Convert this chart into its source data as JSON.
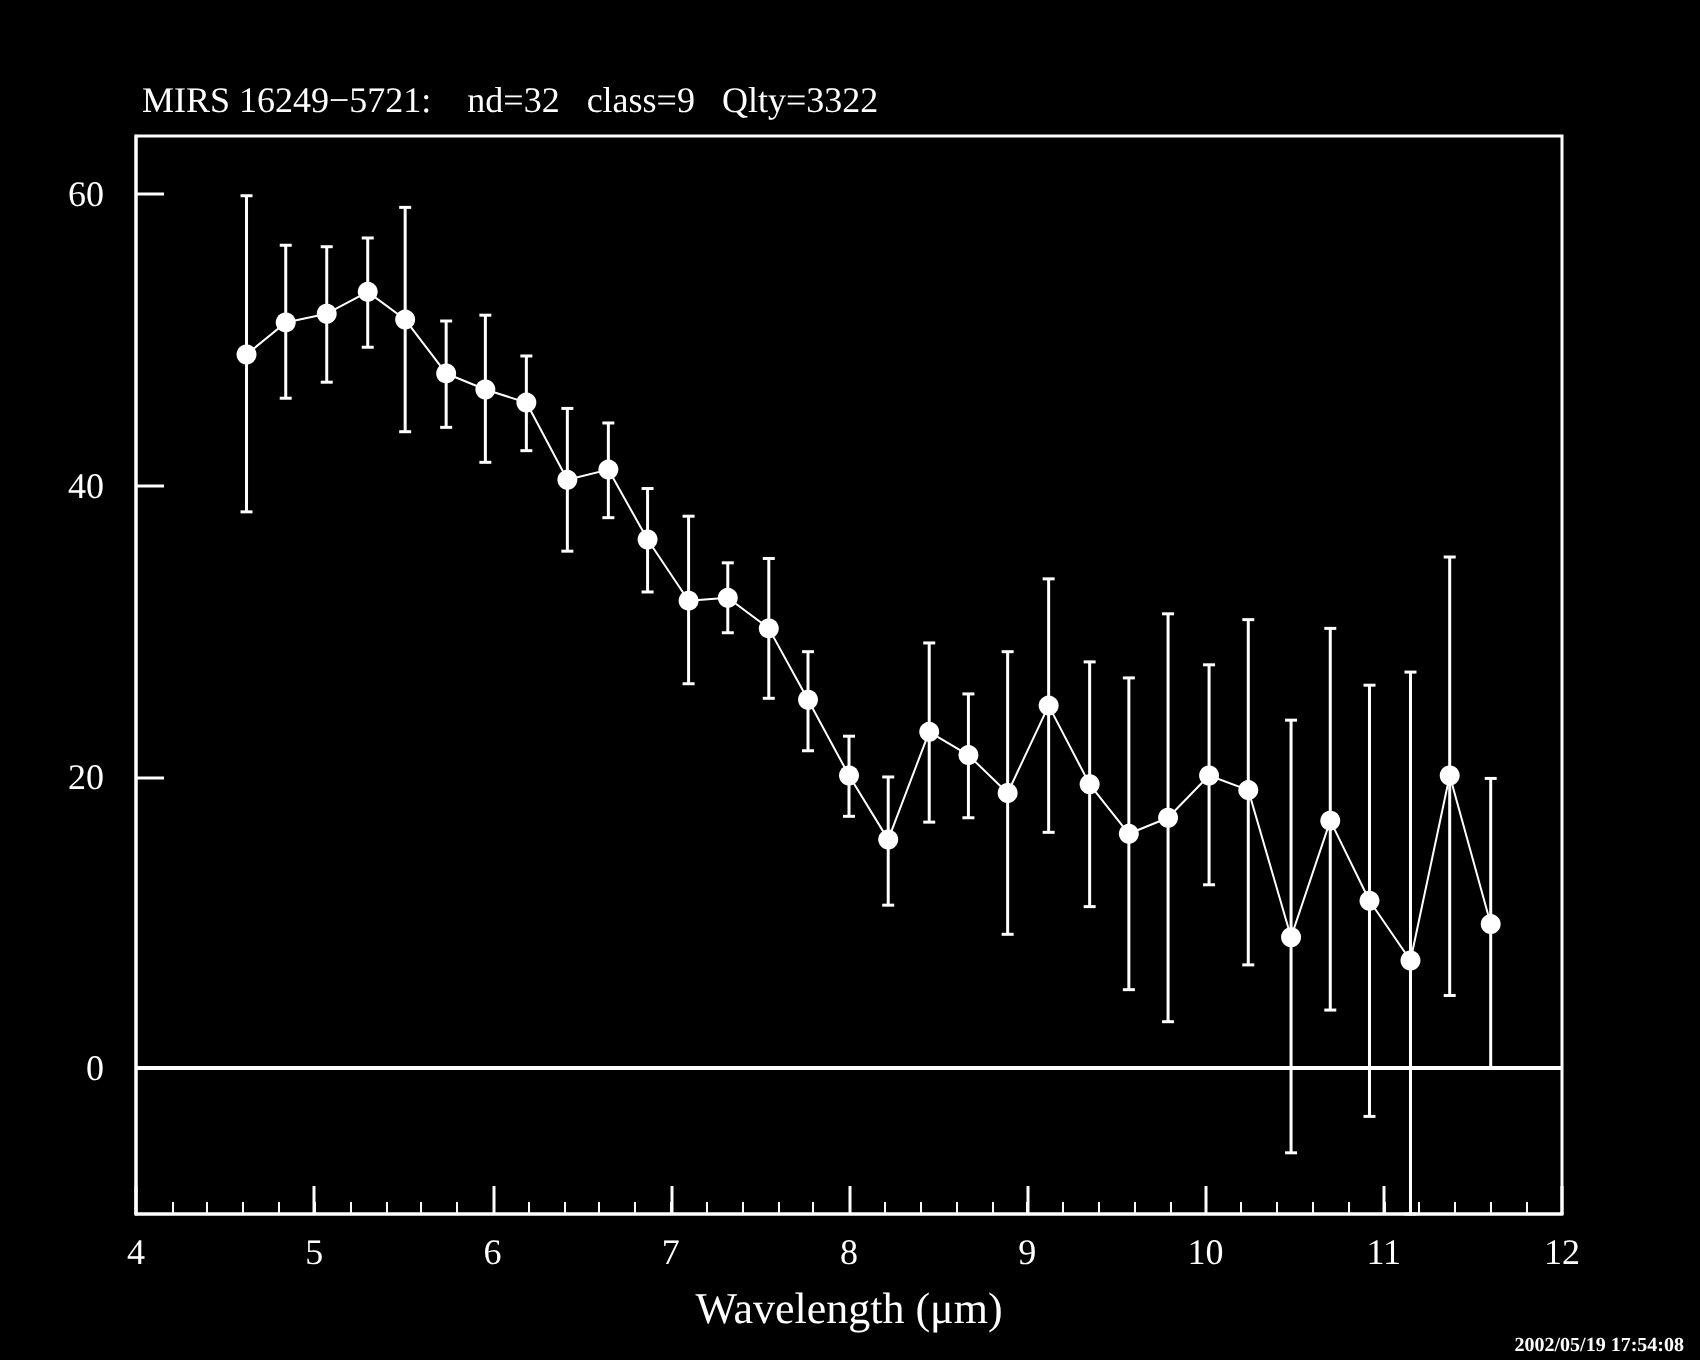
{
  "chart_data": {
    "type": "line",
    "title": "MIRS 16249−5721:    nd=32   class=9   Qlty=3322",
    "xlabel": "Wavelength (μm)",
    "annotations": [
      "2002/05/19 17:54:08"
    ],
    "xlim": [
      4,
      12
    ],
    "xticks": [
      4,
      5,
      6,
      7,
      8,
      9,
      10,
      11,
      12
    ],
    "ylim": [
      -10,
      64
    ],
    "yticks": [
      0,
      20,
      40,
      60
    ],
    "marker": "circle",
    "line_style": "solid",
    "ref_lines": [
      {
        "axis": "y",
        "value": 0,
        "color": "#ffffff"
      }
    ],
    "series": [
      {
        "color": "#ffffff",
        "x": [
          4.62,
          4.84,
          5.07,
          5.3,
          5.51,
          5.74,
          5.96,
          6.19,
          6.42,
          6.65,
          6.87,
          7.1,
          7.32,
          7.55,
          7.77,
          8.0,
          8.22,
          8.45,
          8.67,
          8.89,
          9.12,
          9.35,
          9.57,
          9.79,
          10.02,
          10.24,
          10.48,
          10.7,
          10.92,
          11.15,
          11.37,
          11.6
        ],
        "values": [
          49.0,
          51.2,
          51.8,
          53.3,
          51.4,
          47.7,
          46.6,
          45.7,
          40.4,
          41.1,
          36.3,
          32.1,
          32.3,
          30.2,
          25.3,
          20.1,
          15.7,
          23.1,
          21.5,
          18.9,
          24.9,
          19.5,
          16.1,
          17.2,
          20.1,
          19.1,
          9.0,
          17.0,
          11.5,
          7.4,
          20.1,
          9.9
        ],
        "errors": [
          [
            38.2,
            59.9
          ],
          [
            46.0,
            56.5
          ],
          [
            47.1,
            56.4
          ],
          [
            49.5,
            57.0
          ],
          [
            43.7,
            59.1
          ],
          [
            44.0,
            51.3
          ],
          [
            41.6,
            51.7
          ],
          [
            42.4,
            48.9
          ],
          [
            35.5,
            45.3
          ],
          [
            37.8,
            44.3
          ],
          [
            32.7,
            39.8
          ],
          [
            26.4,
            37.9
          ],
          [
            29.9,
            34.7
          ],
          [
            25.4,
            35.0
          ],
          [
            21.8,
            28.6
          ],
          [
            17.3,
            22.8
          ],
          [
            11.2,
            20.0
          ],
          [
            16.9,
            29.2
          ],
          [
            17.2,
            25.7
          ],
          [
            9.2,
            28.6
          ],
          [
            16.2,
            33.6
          ],
          [
            11.1,
            27.9
          ],
          [
            5.4,
            26.8
          ],
          [
            3.2,
            31.2
          ],
          [
            12.6,
            27.7
          ],
          [
            7.1,
            30.8
          ],
          [
            -5.8,
            23.9
          ],
          [
            4.0,
            30.2
          ],
          [
            -3.3,
            26.3
          ],
          [
            -10,
            27.2
          ],
          [
            5.0,
            35.1
          ],
          [
            0,
            19.9
          ]
        ]
      }
    ]
  }
}
